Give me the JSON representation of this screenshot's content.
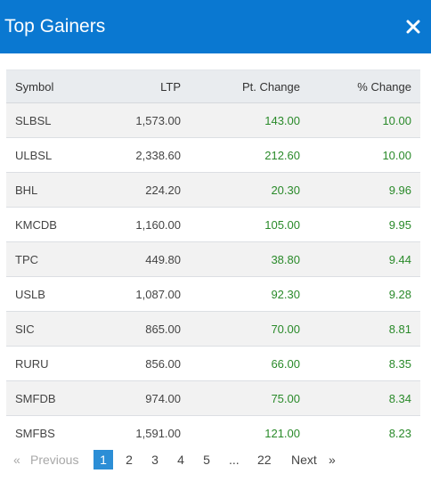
{
  "modal": {
    "title": "Top Gainers",
    "close_icon": "close-icon",
    "accent_color": "#0a78d1"
  },
  "table": {
    "headers": {
      "symbol": "Symbol",
      "ltp": "LTP",
      "pt_change": "Pt. Change",
      "pct_change": "% Change"
    },
    "rows": [
      {
        "symbol": "SLBSL",
        "ltp": "1,573.00",
        "pt_change": "143.00",
        "pct_change": "10.00"
      },
      {
        "symbol": "ULBSL",
        "ltp": "2,338.60",
        "pt_change": "212.60",
        "pct_change": "10.00"
      },
      {
        "symbol": "BHL",
        "ltp": "224.20",
        "pt_change": "20.30",
        "pct_change": "9.96"
      },
      {
        "symbol": "KMCDB",
        "ltp": "1,160.00",
        "pt_change": "105.00",
        "pct_change": "9.95"
      },
      {
        "symbol": "TPC",
        "ltp": "449.80",
        "pt_change": "38.80",
        "pct_change": "9.44"
      },
      {
        "symbol": "USLB",
        "ltp": "1,087.00",
        "pt_change": "92.30",
        "pct_change": "9.28"
      },
      {
        "symbol": "SIC",
        "ltp": "865.00",
        "pt_change": "70.00",
        "pct_change": "8.81"
      },
      {
        "symbol": "RURU",
        "ltp": "856.00",
        "pt_change": "66.00",
        "pct_change": "8.35"
      },
      {
        "symbol": "SMFDB",
        "ltp": "974.00",
        "pt_change": "75.00",
        "pct_change": "8.34"
      },
      {
        "symbol": "SMFBS",
        "ltp": "1,591.00",
        "pt_change": "121.00",
        "pct_change": "8.23"
      }
    ],
    "gain_color": "#2a8a2a"
  },
  "pagination": {
    "prev_arrow": "«",
    "previous": "Previous",
    "pages": [
      "1",
      "2",
      "3",
      "4",
      "5"
    ],
    "ellipsis": "...",
    "last_page": "22",
    "next": "Next",
    "next_arrow": "»",
    "current_page": "1"
  }
}
